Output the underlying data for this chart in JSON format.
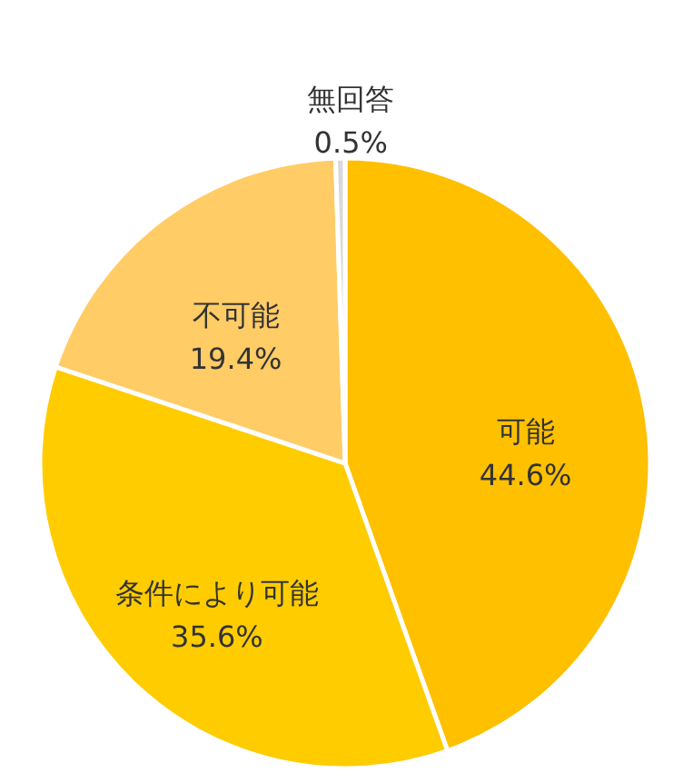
{
  "chart_data": {
    "type": "pie",
    "categories": [
      "可能",
      "条件により可能",
      "不可能",
      "無回答"
    ],
    "values": [
      44.6,
      35.6,
      19.4,
      0.5
    ],
    "colors": [
      "#ffc000",
      "#ffcc00",
      "#ffcc66",
      "#d9d9d9"
    ],
    "value_labels": [
      "44.6%",
      "35.6%",
      "19.4%",
      "0.5%"
    ]
  }
}
